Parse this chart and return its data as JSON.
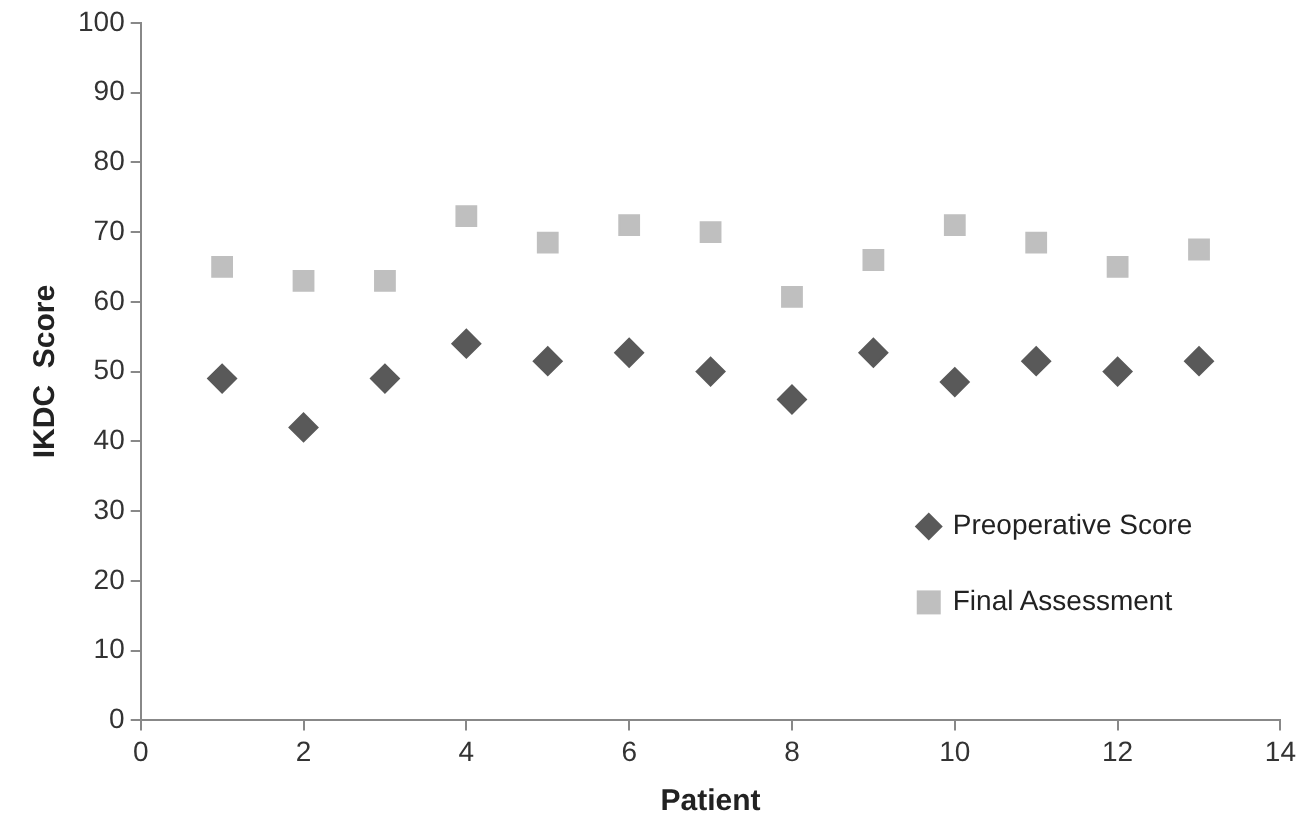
{
  "chart_data": {
    "type": "scatter",
    "xlabel": "Patient",
    "ylabel": "IKDC  Score",
    "xlim": [
      0,
      14
    ],
    "xticks": [
      0,
      2,
      4,
      6,
      8,
      10,
      12,
      14
    ],
    "ylim": [
      0,
      100
    ],
    "yticks": [
      0,
      10,
      20,
      30,
      40,
      50,
      60,
      70,
      80,
      90,
      100
    ],
    "grid": false,
    "legend": "bottom right",
    "x": [
      1,
      2,
      3,
      4,
      5,
      6,
      7,
      8,
      9,
      10,
      11,
      12,
      13
    ],
    "series": [
      {
        "name": "Preoperative Score",
        "color": "#595959",
        "marker": "diamond",
        "values": [
          49,
          42,
          49,
          54,
          51.5,
          52.7,
          50,
          46,
          52.7,
          48.5,
          51.5,
          50,
          51.5
        ]
      },
      {
        "name": "Final Assessment",
        "color": "#bfbfbf",
        "marker": "square",
        "values": [
          65,
          63,
          63,
          72.3,
          68.5,
          71,
          70,
          60.7,
          66,
          71,
          68.5,
          65,
          67.5
        ]
      }
    ]
  }
}
